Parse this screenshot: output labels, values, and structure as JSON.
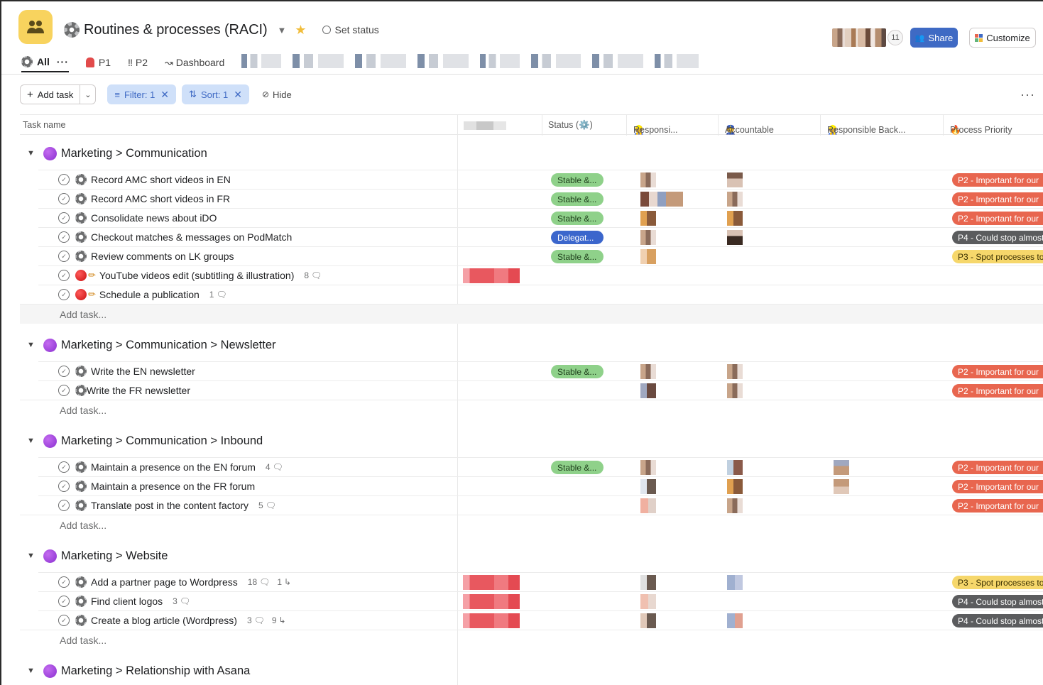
{
  "header": {
    "project_title": "Routines & processes (RACI)",
    "set_status": "Set status",
    "member_count": "11",
    "share_label": "Share",
    "customize_label": "Customize"
  },
  "tabs": {
    "all": "All",
    "p1": "P1",
    "p2": "‼ P2",
    "dashboard": "Dashboard"
  },
  "toolbar": {
    "add_task": "Add task",
    "filter": "Filter: 1",
    "sort": "Sort: 1",
    "hide": "Hide"
  },
  "columns": {
    "task_name": "Task name",
    "status": "Status (⚙️)",
    "responsible": "Responsi...",
    "accountable": "Accountable",
    "responsible_backup": "Responsible Back...",
    "process_priority": "Process Priority"
  },
  "add_task_row": "Add task...",
  "sections": [
    {
      "title": "Marketing > Communication",
      "tasks": [
        {
          "name": "Record AMC short videos in EN",
          "status": "Stable &...",
          "priority": "P2 - Important for our"
        },
        {
          "name": "Record AMC short videos in FR",
          "status": "Stable &...",
          "priority": "P2 - Important for our"
        },
        {
          "name": "Consolidate news about iDO",
          "status": "Stable &...",
          "priority": "P2 - Important for our"
        },
        {
          "name": "Checkout matches & messages on PodMatch",
          "status": "Delegat...",
          "priority": "P4 - Could stop almost"
        },
        {
          "name": "Review comments on LK groups",
          "status": "Stable &...",
          "priority": "P3 - Spot processes to"
        },
        {
          "name": "YouTube videos edit (subtitling & illustration)",
          "comments": "8"
        },
        {
          "name": "Schedule a publication",
          "comments": "1"
        }
      ]
    },
    {
      "title": "Marketing > Communication > Newsletter",
      "tasks": [
        {
          "name": "Write the EN newsletter",
          "status": "Stable &...",
          "priority": "P2 - Important for our"
        },
        {
          "name": "Write the FR newsletter",
          "priority": "P2 - Important for our"
        }
      ]
    },
    {
      "title": "Marketing > Communication > Inbound",
      "tasks": [
        {
          "name": "Maintain a presence on the EN forum",
          "comments": "4",
          "status": "Stable &...",
          "priority": "P2 - Important for our"
        },
        {
          "name": "Maintain a presence on the FR forum",
          "priority": "P2 - Important for our"
        },
        {
          "name": "Translate post in the content factory",
          "comments": "5",
          "priority": "P2 - Important for our"
        }
      ]
    },
    {
      "title": "Marketing > Website",
      "tasks": [
        {
          "name": "Add a partner page to Wordpress",
          "comments": "18",
          "subtasks": "1",
          "priority": "P3 - Spot processes to"
        },
        {
          "name": "Find client logos",
          "comments": "3",
          "priority": "P4 - Could stop almost"
        },
        {
          "name": "Create a blog article (Wordpress)",
          "comments": "3",
          "subtasks": "9",
          "priority": "P4 - Could stop almost"
        }
      ]
    },
    {
      "title": "Marketing > Relationship with Asana"
    }
  ],
  "colors": {
    "accent": "#3f6ac4",
    "status_stable": "#8fd18a",
    "status_delegated": "#3b66cc",
    "priority_p2": "#e8664f",
    "priority_p3": "#f6d76b",
    "priority_p4": "#5b5c5e",
    "section_dot": "#9b3fe0"
  }
}
